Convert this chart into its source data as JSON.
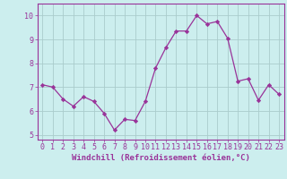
{
  "x": [
    0,
    1,
    2,
    3,
    4,
    5,
    6,
    7,
    8,
    9,
    10,
    11,
    12,
    13,
    14,
    15,
    16,
    17,
    18,
    19,
    20,
    21,
    22,
    23
  ],
  "y": [
    7.1,
    7.0,
    6.5,
    6.2,
    6.6,
    6.4,
    5.9,
    5.2,
    5.65,
    5.6,
    6.4,
    7.8,
    8.65,
    9.35,
    9.35,
    10.0,
    9.65,
    9.75,
    9.05,
    7.25,
    7.35,
    6.45,
    7.1,
    6.7
  ],
  "line_color": "#993399",
  "marker": "D",
  "marker_size": 2.2,
  "background_color": "#cceeee",
  "grid_color": "#aacccc",
  "xlabel": "Windchill (Refroidissement éolien,°C)",
  "xlabel_fontsize": 6.5,
  "tick_fontsize": 6.0,
  "ylim": [
    4.8,
    10.5
  ],
  "xlim": [
    -0.5,
    23.5
  ],
  "yticks": [
    5,
    6,
    7,
    8,
    9,
    10
  ],
  "xticks": [
    0,
    1,
    2,
    3,
    4,
    5,
    6,
    7,
    8,
    9,
    10,
    11,
    12,
    13,
    14,
    15,
    16,
    17,
    18,
    19,
    20,
    21,
    22,
    23
  ]
}
